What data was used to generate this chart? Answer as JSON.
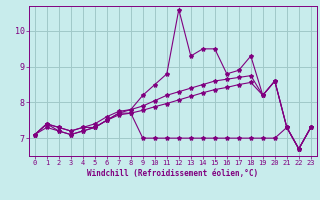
{
  "xlabel": "Windchill (Refroidissement éolien,°C)",
  "bg_color": "#c8ecec",
  "line_color": "#800080",
  "grid_color": "#a0c8c8",
  "xlim": [
    -0.5,
    23.5
  ],
  "ylim": [
    6.5,
    10.7
  ],
  "yticks": [
    7,
    8,
    9,
    10
  ],
  "xticks": [
    0,
    1,
    2,
    3,
    4,
    5,
    6,
    7,
    8,
    9,
    10,
    11,
    12,
    13,
    14,
    15,
    16,
    17,
    18,
    19,
    20,
    21,
    22,
    23
  ],
  "series": [
    [
      7.1,
      7.4,
      7.2,
      7.1,
      7.2,
      7.3,
      7.5,
      7.7,
      7.7,
      7.0,
      7.0,
      7.0,
      7.0,
      7.0,
      7.0,
      7.0,
      7.0,
      7.0,
      7.0,
      7.0,
      7.0,
      7.3,
      6.7,
      7.3
    ],
    [
      7.1,
      7.4,
      7.3,
      7.2,
      7.3,
      7.3,
      7.5,
      7.7,
      7.8,
      8.2,
      8.5,
      8.8,
      10.6,
      9.3,
      9.5,
      9.5,
      8.8,
      8.9,
      9.3,
      8.2,
      8.6,
      7.3,
      6.7,
      7.3
    ],
    [
      7.1,
      7.4,
      7.3,
      7.2,
      7.3,
      7.4,
      7.6,
      7.75,
      7.8,
      7.9,
      8.05,
      8.2,
      8.3,
      8.4,
      8.5,
      8.6,
      8.65,
      8.7,
      8.75,
      8.2,
      8.6,
      7.3,
      6.7,
      7.3
    ],
    [
      7.1,
      7.3,
      7.2,
      7.1,
      7.2,
      7.3,
      7.5,
      7.65,
      7.7,
      7.78,
      7.88,
      7.97,
      8.07,
      8.17,
      8.27,
      8.36,
      8.42,
      8.5,
      8.56,
      8.2,
      8.6,
      7.3,
      6.7,
      7.3
    ]
  ],
  "marker": "*",
  "markersize": 3,
  "linewidth": 0.8,
  "tick_fontsize": 5,
  "xlabel_fontsize": 5.5
}
